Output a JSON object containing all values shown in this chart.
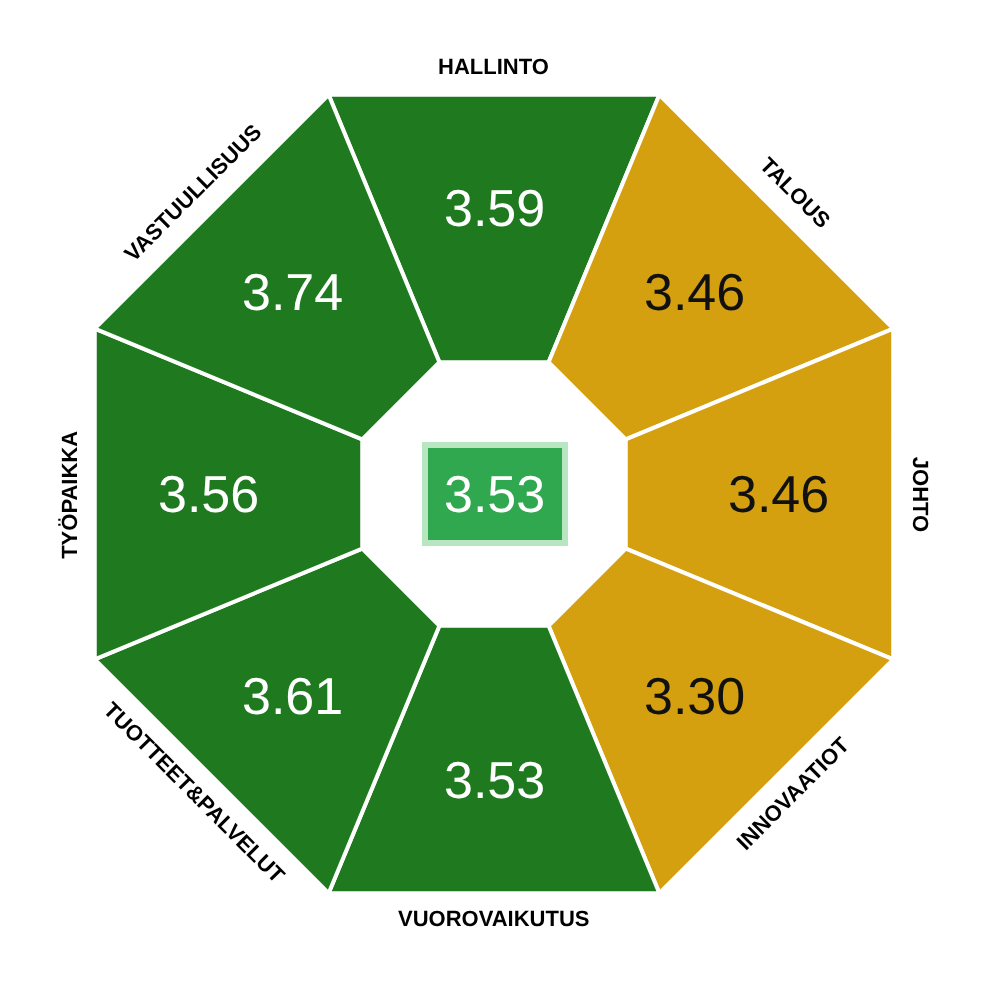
{
  "chart_data": {
    "type": "other",
    "categories": [
      "HALLINTO",
      "TALOUS",
      "JOHTO",
      "INNOVAATIOT",
      "VUOROVAIKUTUS",
      "TUOTTEET&PALVELUT",
      "TYÖPAIKKA",
      "VASTUULLISUUS"
    ],
    "values": [
      3.59,
      3.46,
      3.46,
      3.3,
      3.53,
      3.61,
      3.56,
      3.74
    ],
    "value_labels": [
      "3.59",
      "3.46",
      "3.46",
      "3.30",
      "3.53",
      "3.61",
      "3.56",
      "3.74"
    ],
    "colors": [
      "#1f7a1f",
      "#d4a010",
      "#d4a010",
      "#d4a010",
      "#1f7a1f",
      "#1f7a1f",
      "#1f7a1f",
      "#1f7a1f"
    ],
    "annotations": [
      "3.53"
    ]
  }
}
